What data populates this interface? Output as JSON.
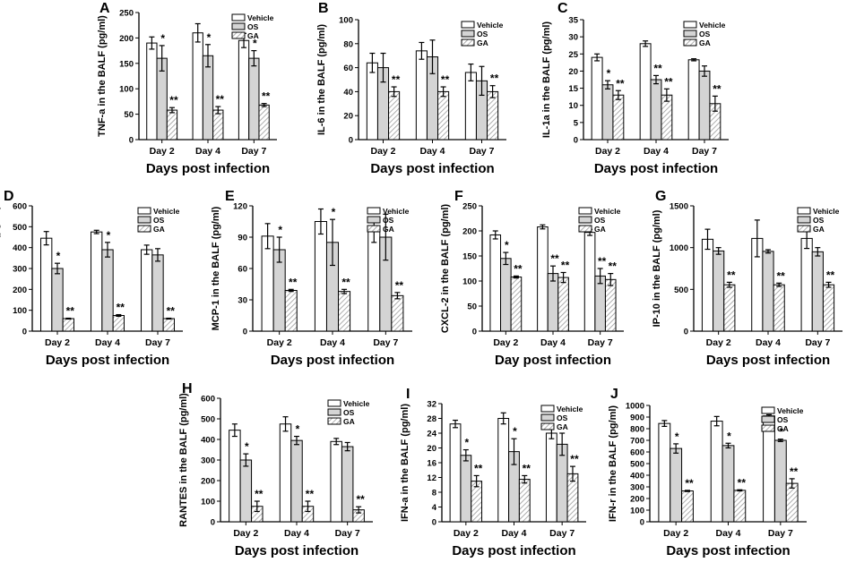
{
  "colors": {
    "vehicle": "#ffffff",
    "os": "#d4d4d4",
    "ga_hatch": "#9a9a9a",
    "stroke": "#000000"
  },
  "legend": [
    "Vehicle",
    "OS",
    "GA"
  ],
  "chart_data": [
    {
      "id": "A",
      "type": "bar",
      "ylabel": "TNF-a in the BALF (pg/ml)",
      "xlabel": "Days post infection",
      "categories": [
        "Day 2",
        "Day 4",
        "Day 7"
      ],
      "ylim": [
        0,
        250
      ],
      "ticks": [
        0,
        50,
        100,
        150,
        200,
        250
      ],
      "series": [
        {
          "name": "Vehicle",
          "values": [
            190,
            210,
            195
          ],
          "errors": [
            12,
            18,
            14
          ]
        },
        {
          "name": "OS",
          "values": [
            160,
            165,
            160
          ],
          "errors": [
            25,
            22,
            15
          ]
        },
        {
          "name": "GA",
          "values": [
            58,
            58,
            68
          ],
          "errors": [
            5,
            7,
            3
          ]
        }
      ],
      "sig": [
        [
          "",
          "*",
          "**"
        ],
        [
          "",
          "*",
          "**"
        ],
        [
          "",
          "*",
          "**"
        ]
      ]
    },
    {
      "id": "B",
      "type": "bar",
      "ylabel": "IL-6 in the BALF (pg/ml)",
      "xlabel": "Days post infection",
      "categories": [
        "Day 2",
        "Day 4",
        "Day 7"
      ],
      "ylim": [
        0,
        100
      ],
      "ticks": [
        0,
        20,
        40,
        60,
        80,
        100
      ],
      "series": [
        {
          "name": "Vehicle",
          "values": [
            64,
            74,
            56
          ],
          "errors": [
            8,
            7,
            7
          ]
        },
        {
          "name": "OS",
          "values": [
            60,
            69,
            49
          ],
          "errors": [
            12,
            14,
            12
          ]
        },
        {
          "name": "GA",
          "values": [
            40,
            40,
            40
          ],
          "errors": [
            4,
            4,
            5
          ]
        }
      ],
      "sig": [
        [
          "",
          "",
          "**"
        ],
        [
          "",
          "",
          "**"
        ],
        [
          "",
          "",
          "**"
        ]
      ]
    },
    {
      "id": "C",
      "type": "bar",
      "ylabel": "IL-1a in the BALF (pg/ml)",
      "xlabel": "Days post infection",
      "categories": [
        "Day 2",
        "Day 4",
        "Day 7"
      ],
      "ylim": [
        0,
        35
      ],
      "ticks": [
        0,
        5,
        10,
        15,
        20,
        25,
        30,
        35
      ],
      "series": [
        {
          "name": "Vehicle",
          "values": [
            24,
            28,
            23.3
          ],
          "errors": [
            1,
            0.8,
            0.3
          ]
        },
        {
          "name": "OS",
          "values": [
            16,
            17.5,
            20
          ],
          "errors": [
            1.2,
            1.2,
            1.5
          ]
        },
        {
          "name": "GA",
          "values": [
            13,
            13,
            10.5
          ],
          "errors": [
            1.3,
            1.8,
            2.2
          ]
        }
      ],
      "sig": [
        [
          "",
          "*",
          "**"
        ],
        [
          "",
          "**",
          "**"
        ],
        [
          "",
          "",
          "**"
        ]
      ]
    },
    {
      "id": "D",
      "type": "bar",
      "ylabel": "MIP-1a in the BALF (pg/ml)",
      "xlabel": "Days post infection",
      "categories": [
        "Day 2",
        "Day 4",
        "Day 7"
      ],
      "ylim": [
        0,
        600
      ],
      "ticks": [
        0,
        100,
        200,
        300,
        400,
        500,
        600
      ],
      "series": [
        {
          "name": "Vehicle",
          "values": [
            445,
            475,
            390
          ],
          "errors": [
            32,
            8,
            22
          ]
        },
        {
          "name": "OS",
          "values": [
            300,
            390,
            365
          ],
          "errors": [
            25,
            35,
            30
          ]
        },
        {
          "name": "GA",
          "values": [
            60,
            75,
            60
          ],
          "errors": [
            2,
            4,
            2
          ]
        }
      ],
      "sig": [
        [
          "",
          "*",
          "**"
        ],
        [
          "",
          "*",
          "**"
        ],
        [
          "",
          "",
          "**"
        ]
      ]
    },
    {
      "id": "E",
      "type": "bar",
      "ylabel": "MCP-1 in the BALF (pg/ml)",
      "xlabel": "Days post infection",
      "categories": [
        "Day 2",
        "Day 4",
        "Day 7"
      ],
      "ylim": [
        0,
        120
      ],
      "ticks": [
        0,
        30,
        60,
        90,
        120
      ],
      "series": [
        {
          "name": "Vehicle",
          "values": [
            91,
            105,
            97
          ],
          "errors": [
            12,
            12,
            12
          ]
        },
        {
          "name": "OS",
          "values": [
            78,
            85,
            90
          ],
          "errors": [
            12,
            22,
            22
          ]
        },
        {
          "name": "GA",
          "values": [
            39,
            38,
            34
          ],
          "errors": [
            1,
            2,
            3
          ]
        }
      ],
      "sig": [
        [
          "",
          "*",
          "**"
        ],
        [
          "",
          "*",
          "**"
        ],
        [
          "",
          "",
          "**"
        ]
      ]
    },
    {
      "id": "F",
      "type": "bar",
      "ylabel": "CXCL-2 in the BALF (pg/ml)",
      "xlabel": "Day post infection",
      "categories": [
        "Day 2",
        "Day 4",
        "Day 7"
      ],
      "ylim": [
        0,
        250
      ],
      "ticks": [
        0,
        50,
        100,
        150,
        200,
        250
      ],
      "series": [
        {
          "name": "Vehicle",
          "values": [
            192,
            208,
            197
          ],
          "errors": [
            8,
            4,
            6
          ]
        },
        {
          "name": "OS",
          "values": [
            145,
            115,
            110
          ],
          "errors": [
            12,
            15,
            15
          ]
        },
        {
          "name": "GA",
          "values": [
            108,
            107,
            103
          ],
          "errors": [
            2,
            10,
            12
          ]
        }
      ],
      "sig": [
        [
          "",
          "*",
          "**"
        ],
        [
          "",
          "**",
          "**"
        ],
        [
          "",
          "**",
          "**"
        ]
      ]
    },
    {
      "id": "G",
      "type": "bar",
      "ylabel": "IP-10 in the BALF (pg/ml)",
      "xlabel": "Days post infection",
      "categories": [
        "Day 2",
        "Day 4",
        "Day 7"
      ],
      "ylim": [
        0,
        1500
      ],
      "ticks": [
        0,
        500,
        1000,
        1500
      ],
      "series": [
        {
          "name": "Vehicle",
          "values": [
            1100,
            1110,
            1110
          ],
          "errors": [
            120,
            220,
            120
          ]
        },
        {
          "name": "OS",
          "values": [
            960,
            955,
            950
          ],
          "errors": [
            40,
            20,
            50
          ]
        },
        {
          "name": "GA",
          "values": [
            555,
            555,
            555
          ],
          "errors": [
            30,
            20,
            30
          ]
        }
      ],
      "sig": [
        [
          "",
          "",
          "**"
        ],
        [
          "",
          "",
          "**"
        ],
        [
          "",
          "",
          "**"
        ]
      ]
    },
    {
      "id": "H",
      "type": "bar",
      "ylabel": "RANTES in the BALF (pg/ml)",
      "xlabel": "Days post infection",
      "categories": [
        "Day 2",
        "Day 4",
        "Day 7"
      ],
      "ylim": [
        0,
        600
      ],
      "ticks": [
        0,
        100,
        200,
        300,
        400,
        500,
        600
      ],
      "series": [
        {
          "name": "Vehicle",
          "values": [
            445,
            475,
            390
          ],
          "errors": [
            30,
            35,
            15
          ]
        },
        {
          "name": "OS",
          "values": [
            300,
            395,
            365
          ],
          "errors": [
            30,
            20,
            20
          ]
        },
        {
          "name": "GA",
          "values": [
            75,
            75,
            58
          ],
          "errors": [
            25,
            25,
            15
          ]
        }
      ],
      "sig": [
        [
          "",
          "*",
          "**"
        ],
        [
          "",
          "*",
          "**"
        ],
        [
          "",
          "",
          "**"
        ]
      ]
    },
    {
      "id": "I",
      "type": "bar",
      "ylabel": "IFN-a in the BALF (pg/ml)",
      "xlabel": "Days post infection",
      "categories": [
        "Day 2",
        "Day 4",
        "Day 7"
      ],
      "ylim": [
        0,
        32
      ],
      "ticks": [
        0,
        4,
        8,
        12,
        16,
        20,
        24,
        28,
        32
      ],
      "series": [
        {
          "name": "Vehicle",
          "values": [
            26.5,
            28,
            24
          ],
          "errors": [
            1,
            1.5,
            1.5
          ]
        },
        {
          "name": "OS",
          "values": [
            18,
            19,
            21
          ],
          "errors": [
            1.5,
            3.5,
            3
          ]
        },
        {
          "name": "GA",
          "values": [
            11,
            11.5,
            13
          ],
          "errors": [
            1.5,
            1,
            2
          ]
        }
      ],
      "sig": [
        [
          "",
          "*",
          "**"
        ],
        [
          "",
          "*",
          "**"
        ],
        [
          "",
          "",
          "**"
        ]
      ]
    },
    {
      "id": "J",
      "type": "bar",
      "ylabel": "IFN-r in the BALF (pg/ml)",
      "xlabel": "Days post infection",
      "categories": [
        "Day 2",
        "Day 4",
        "Day 7"
      ],
      "ylim": [
        0,
        1000
      ],
      "ticks": [
        0,
        100,
        200,
        300,
        400,
        500,
        600,
        700,
        800,
        900,
        1000
      ],
      "series": [
        {
          "name": "Vehicle",
          "values": [
            845,
            865,
            910
          ],
          "errors": [
            25,
            40,
            10
          ]
        },
        {
          "name": "OS",
          "values": [
            630,
            655,
            700
          ],
          "errors": [
            40,
            20,
            10
          ]
        },
        {
          "name": "GA",
          "values": [
            265,
            270,
            330
          ],
          "errors": [
            5,
            5,
            40
          ]
        }
      ],
      "sig": [
        [
          "",
          "*",
          "**"
        ],
        [
          "",
          "*",
          "**"
        ],
        [
          "",
          "*",
          "**"
        ]
      ]
    }
  ]
}
